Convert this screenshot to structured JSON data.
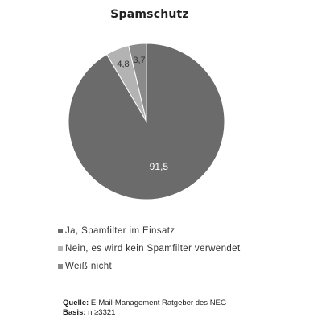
{
  "chart_data": {
    "type": "pie",
    "title": "Spamschutz",
    "categories": [
      "Ja, Spamfilter im Einsatz",
      "Nein, es wird kein Spamfilter verwendet",
      "Weiß nicht"
    ],
    "values": [
      91.5,
      4.8,
      3.7
    ],
    "data_labels": [
      "91,5",
      "4,8",
      "3,7"
    ],
    "colors": [
      "#6b6b6b",
      "#b3b3b3",
      "#8a8a8a"
    ],
    "legend_position": "bottom-left"
  },
  "source": {
    "label": "Quelle:",
    "text": "E-Mail-Management Ratgeber des NEG",
    "basis_label": "Basis:",
    "basis_text": "n ≥3321"
  }
}
